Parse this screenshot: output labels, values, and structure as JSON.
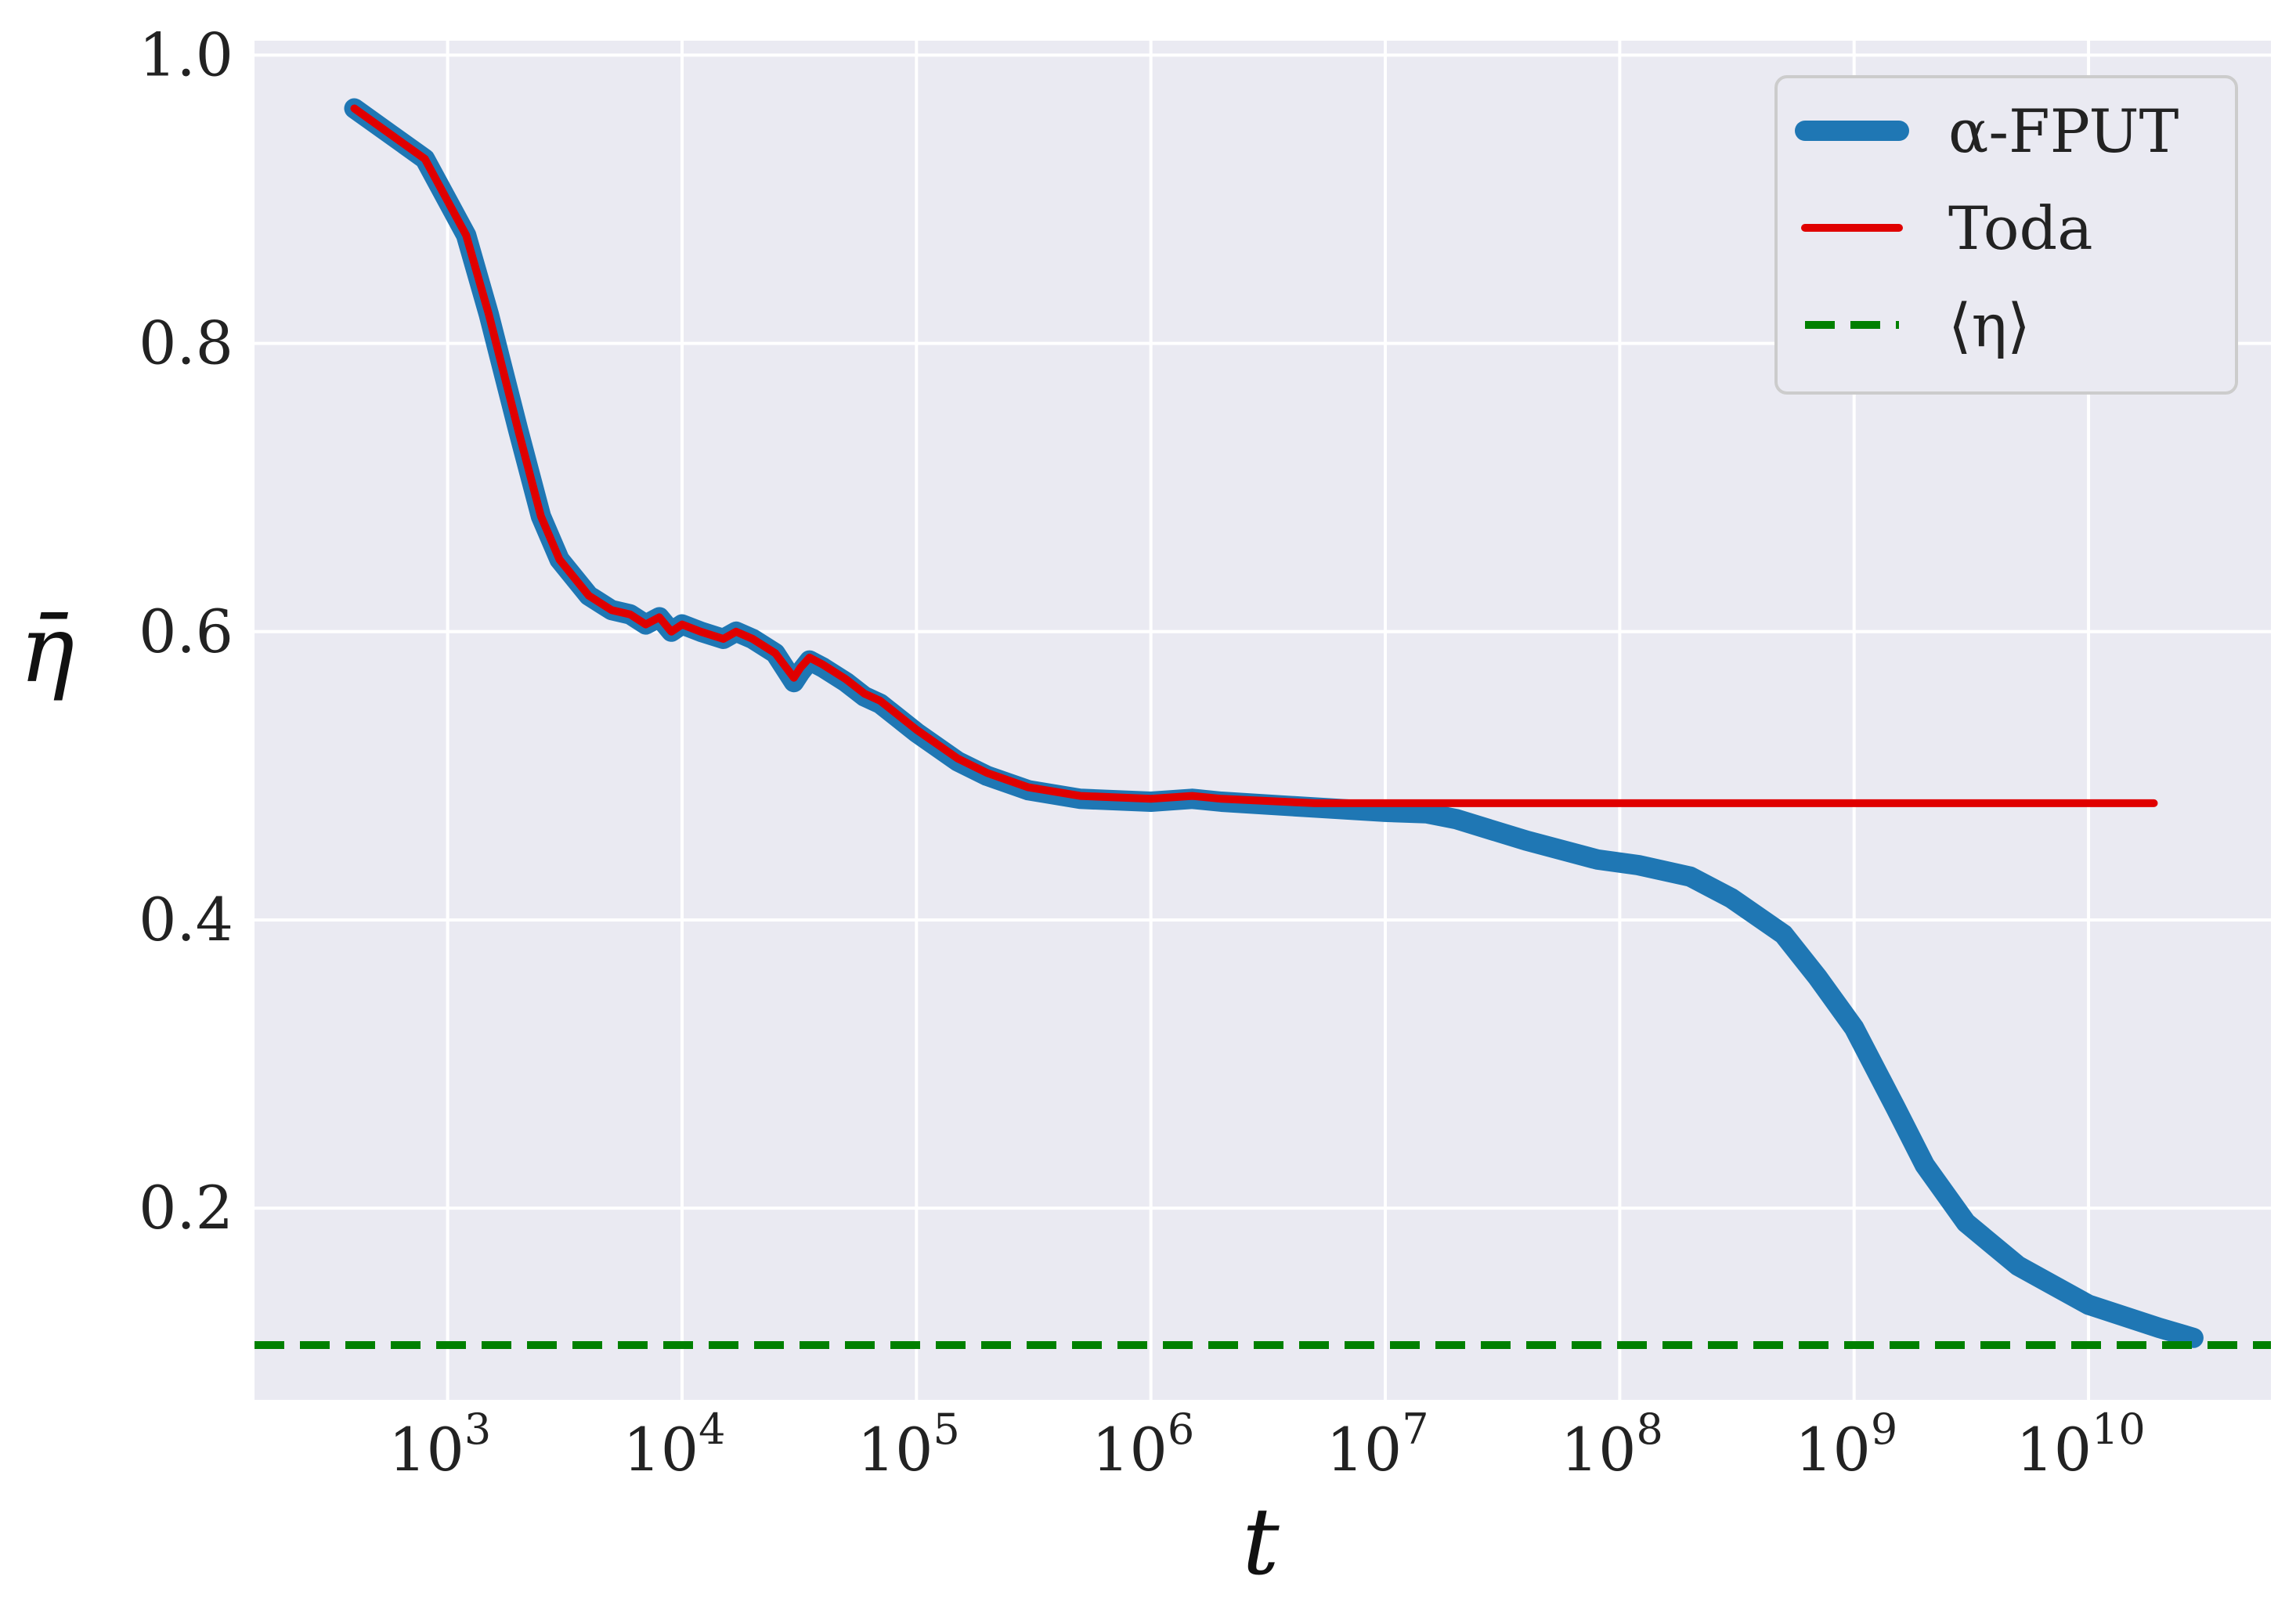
{
  "chart_data": {
    "type": "line",
    "title": "",
    "xlabel": "t",
    "ylabel": "η̄",
    "xscale": "log",
    "xlim": [
      150,
      60000000000
    ],
    "ylim": [
      0.067,
      1.01
    ],
    "grid": true,
    "legend_placement": "top-right",
    "x_ticks": [
      {
        "value": 1000,
        "label": "10",
        "exp": "3"
      },
      {
        "value": 10000,
        "label": "10",
        "exp": "4"
      },
      {
        "value": 100000,
        "label": "10",
        "exp": "5"
      },
      {
        "value": 1000000,
        "label": "10",
        "exp": "6"
      },
      {
        "value": 10000000,
        "label": "10",
        "exp": "7"
      },
      {
        "value": 100000000,
        "label": "10",
        "exp": "8"
      },
      {
        "value": 1000000000,
        "label": "10",
        "exp": "9"
      },
      {
        "value": 10000000000,
        "label": "10",
        "exp": "10"
      }
    ],
    "y_ticks": [
      {
        "value": 0.2,
        "label": "0.2"
      },
      {
        "value": 0.4,
        "label": "0.4"
      },
      {
        "value": 0.6,
        "label": "0.6"
      },
      {
        "value": 0.8,
        "label": "0.8"
      },
      {
        "value": 1.0,
        "label": "1.0"
      }
    ],
    "series": [
      {
        "name": "α-FPUT",
        "color": "#1f77b4",
        "style": "solid-thick",
        "x": [
          400,
          800,
          1200,
          1500,
          2000,
          2500,
          3000,
          4000,
          5000,
          6000,
          7000,
          8000,
          9000,
          10000,
          12000,
          15000,
          17000,
          20000,
          25000,
          30000,
          32000,
          35000,
          40000,
          50000,
          60000,
          70000,
          100000,
          150000,
          200000,
          300000,
          500000,
          1000000,
          1500000,
          2000000,
          5000000,
          10000000,
          15000000,
          20000000,
          40000000,
          80000000,
          120000000,
          200000000,
          300000000,
          500000000,
          700000000,
          1000000000,
          1500000000,
          2000000000,
          3000000000,
          5000000000,
          10000000000,
          20000000000,
          28000000000
        ],
        "y": [
          0.963,
          0.928,
          0.875,
          0.82,
          0.74,
          0.68,
          0.65,
          0.625,
          0.615,
          0.612,
          0.605,
          0.61,
          0.6,
          0.605,
          0.6,
          0.595,
          0.6,
          0.595,
          0.585,
          0.565,
          0.572,
          0.58,
          0.575,
          0.565,
          0.555,
          0.55,
          0.53,
          0.51,
          0.5,
          0.49,
          0.484,
          0.482,
          0.484,
          0.482,
          0.478,
          0.475,
          0.474,
          0.47,
          0.455,
          0.442,
          0.438,
          0.43,
          0.415,
          0.39,
          0.36,
          0.325,
          0.27,
          0.23,
          0.19,
          0.16,
          0.133,
          0.117,
          0.11
        ]
      },
      {
        "name": "Toda",
        "color": "#e00000",
        "style": "solid",
        "x": [
          400,
          800,
          1200,
          1500,
          2000,
          2500,
          3000,
          4000,
          5000,
          6000,
          7000,
          8000,
          9000,
          10000,
          12000,
          15000,
          17000,
          20000,
          25000,
          30000,
          32000,
          35000,
          40000,
          50000,
          60000,
          70000,
          100000,
          150000,
          200000,
          300000,
          500000,
          1000000,
          1500000,
          2000000,
          5000000,
          10000000,
          100000000,
          1000000000,
          19000000000
        ],
        "y": [
          0.963,
          0.928,
          0.875,
          0.82,
          0.74,
          0.68,
          0.65,
          0.625,
          0.615,
          0.612,
          0.605,
          0.61,
          0.6,
          0.605,
          0.6,
          0.595,
          0.6,
          0.595,
          0.585,
          0.568,
          0.575,
          0.582,
          0.577,
          0.567,
          0.557,
          0.552,
          0.532,
          0.512,
          0.502,
          0.492,
          0.486,
          0.484,
          0.486,
          0.484,
          0.481,
          0.481,
          0.481,
          0.481,
          0.481
        ]
      },
      {
        "name": "⟨η⟩",
        "color": "#008000",
        "style": "dashed",
        "x": [
          150,
          60000000000
        ],
        "y": [
          0.105,
          0.105
        ]
      }
    ]
  }
}
